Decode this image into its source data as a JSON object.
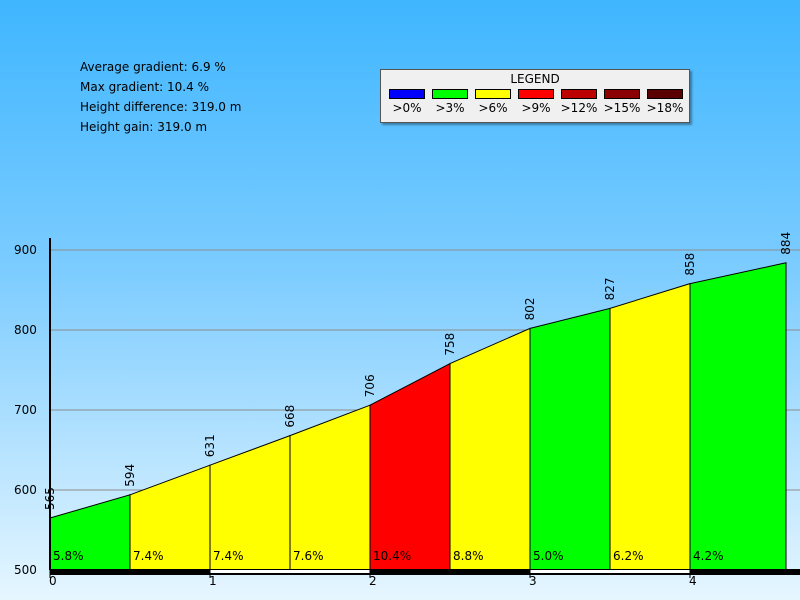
{
  "stats": {
    "avg_gradient": "Average gradient: 6.9 %",
    "max_gradient": "Max gradient: 10.4 %",
    "height_difference": "Height difference: 319.0 m",
    "height_gain": "Height gain: 319.0 m"
  },
  "legend": {
    "title": "LEGEND",
    "items": [
      {
        "label": ">0%",
        "color": "#0000ff"
      },
      {
        "label": ">3%",
        "color": "#00ff00"
      },
      {
        "label": ">6%",
        "color": "#ffff00"
      },
      {
        "label": ">9%",
        "color": "#ff0000"
      },
      {
        "label": ">12%",
        "color": "#bb0000"
      },
      {
        "label": ">15%",
        "color": "#8b0000"
      },
      {
        "label": ">18%",
        "color": "#5a0000"
      }
    ]
  },
  "chart_data": {
    "type": "area",
    "title": "",
    "xlabel": "",
    "ylabel": "",
    "xlim": [
      0,
      4.6
    ],
    "ylim": [
      500,
      900
    ],
    "x_ticks": [
      0,
      1,
      2,
      3,
      4
    ],
    "y_ticks": [
      500,
      600,
      700,
      800,
      900
    ],
    "grid": true,
    "points": [
      {
        "x": 0,
        "elevation": 565
      },
      {
        "x": 0.5,
        "elevation": 594
      },
      {
        "x": 1.0,
        "elevation": 631
      },
      {
        "x": 1.5,
        "elevation": 668
      },
      {
        "x": 2.0,
        "elevation": 706
      },
      {
        "x": 2.5,
        "elevation": 758
      },
      {
        "x": 3.0,
        "elevation": 802
      },
      {
        "x": 3.5,
        "elevation": 827
      },
      {
        "x": 4.0,
        "elevation": 858
      },
      {
        "x": 4.6,
        "elevation": 884
      }
    ],
    "segments": [
      {
        "gradient": "5.8%",
        "color": "#00ff00"
      },
      {
        "gradient": "7.4%",
        "color": "#ffff00"
      },
      {
        "gradient": "7.4%",
        "color": "#ffff00"
      },
      {
        "gradient": "7.6%",
        "color": "#ffff00"
      },
      {
        "gradient": "10.4%",
        "color": "#ff0000"
      },
      {
        "gradient": "8.8%",
        "color": "#ffff00"
      },
      {
        "gradient": "5.0%",
        "color": "#00ff00"
      },
      {
        "gradient": "6.2%",
        "color": "#ffff00"
      },
      {
        "gradient": "4.2%",
        "color": "#00ff00"
      }
    ]
  }
}
